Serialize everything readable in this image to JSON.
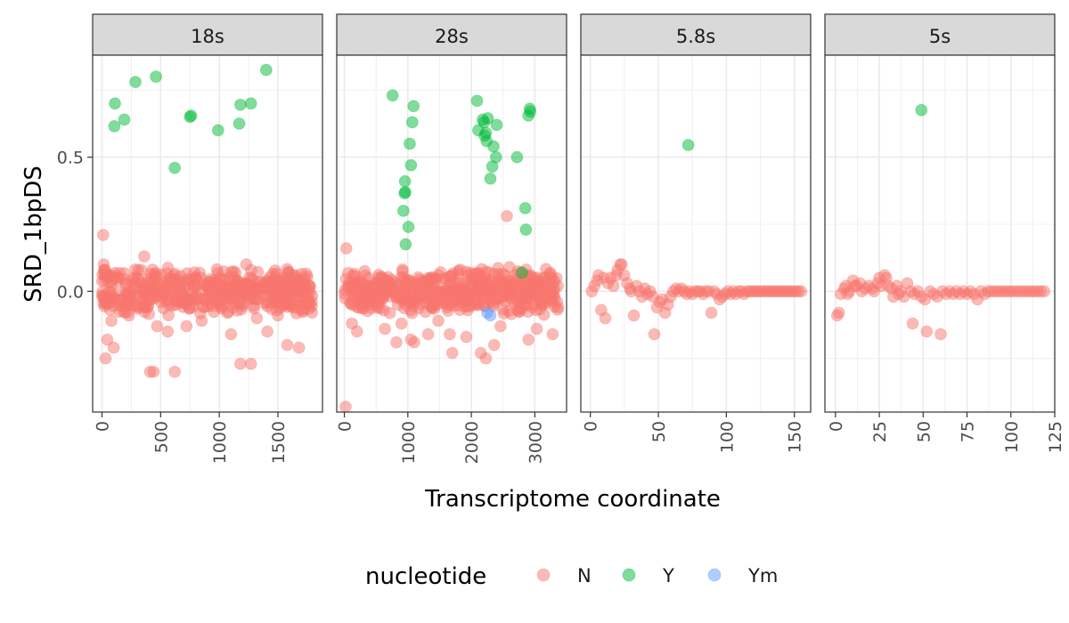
{
  "chart_data": {
    "type": "scatter",
    "facet_by": "rRNA",
    "ylabel": "SRD_1bpDS",
    "xlabel": "Transcriptome coordinate",
    "y_ticks": [
      0.0,
      0.5
    ],
    "y_tick_labels": [
      "0.0",
      "0.5"
    ],
    "ylim": [
      -0.45,
      0.88
    ],
    "grid": true,
    "theme": "bw",
    "legend": {
      "title": "nucleotide",
      "position": "bottom",
      "entries": [
        {
          "label": "N",
          "color": "#F8766D"
        },
        {
          "label": "Y",
          "color": "#00BA38"
        },
        {
          "label": "Ym",
          "color": "#619CFF"
        }
      ]
    },
    "panels": [
      {
        "strip": "18s",
        "xlim": [
          -80,
          1880
        ],
        "x_ticks": [
          0,
          500,
          1000,
          1500
        ],
        "x_tick_labels": [
          "0",
          "500",
          "1000",
          "1500"
        ],
        "n_extent": [
          1,
          1800
        ],
        "series": {
          "Y": [
            [
              105,
              0.615
            ],
            [
              110,
              0.7
            ],
            [
              190,
              0.64
            ],
            [
              285,
              0.78
            ],
            [
              460,
              0.8
            ],
            [
              620,
              0.46
            ],
            [
              750,
              0.65
            ],
            [
              760,
              0.655
            ],
            [
              990,
              0.6
            ],
            [
              1170,
              0.625
            ],
            [
              1180,
              0.695
            ],
            [
              1270,
              0.7
            ],
            [
              1400,
              0.825
            ]
          ],
          "N": [
            [
              10,
              0.21
            ],
            [
              15,
              0.1
            ],
            [
              20,
              0.08
            ],
            [
              25,
              0.06
            ],
            [
              30,
              -0.25
            ],
            [
              45,
              -0.18
            ],
            [
              80,
              -0.11
            ],
            [
              100,
              -0.21
            ],
            [
              360,
              0.13
            ],
            [
              410,
              -0.3
            ],
            [
              440,
              -0.3
            ],
            [
              470,
              -0.13
            ],
            [
              620,
              -0.3
            ],
            [
              720,
              -0.13
            ],
            [
              1100,
              -0.16
            ],
            [
              1180,
              -0.27
            ],
            [
              1230,
              0.1
            ],
            [
              1270,
              -0.27
            ],
            [
              1410,
              -0.15
            ],
            [
              1580,
              -0.2
            ],
            [
              1680,
              -0.21
            ],
            [
              230,
              -0.09
            ],
            [
              560,
              -0.15
            ],
            [
              850,
              -0.11
            ],
            [
              1320,
              -0.1
            ],
            [
              1500,
              -0.09
            ]
          ],
          "Ym": []
        }
      },
      {
        "strip": "28s",
        "xlim": [
          -120,
          3500
        ],
        "x_ticks": [
          0,
          1000,
          2000,
          3000
        ],
        "x_tick_labels": [
          "0",
          "1000",
          "2000",
          "3000"
        ],
        "n_extent": [
          1,
          3380
        ],
        "series": {
          "Y": [
            [
              760,
              0.73
            ],
            [
              930,
              0.3
            ],
            [
              950,
              0.365
            ],
            [
              955,
              0.41
            ],
            [
              960,
              0.37
            ],
            [
              965,
              0.175
            ],
            [
              1010,
              0.24
            ],
            [
              1030,
              0.55
            ],
            [
              1050,
              0.47
            ],
            [
              1070,
              0.63
            ],
            [
              1090,
              0.69
            ],
            [
              2090,
              0.71
            ],
            [
              2110,
              0.6
            ],
            [
              2180,
              0.64
            ],
            [
              2200,
              0.63
            ],
            [
              2210,
              0.58
            ],
            [
              2230,
              0.59
            ],
            [
              2240,
              0.56
            ],
            [
              2260,
              0.645
            ],
            [
              2300,
              0.42
            ],
            [
              2330,
              0.465
            ],
            [
              2350,
              0.54
            ],
            [
              2390,
              0.5
            ],
            [
              2400,
              0.62
            ],
            [
              2720,
              0.5
            ],
            [
              2800,
              0.07
            ],
            [
              2850,
              0.31
            ],
            [
              2860,
              0.23
            ],
            [
              2900,
              0.655
            ],
            [
              2920,
              0.68
            ],
            [
              2930,
              0.67
            ]
          ],
          "N": [
            [
              30,
              0.16
            ],
            [
              20,
              -0.43
            ],
            [
              120,
              -0.12
            ],
            [
              200,
              -0.15
            ],
            [
              640,
              -0.14
            ],
            [
              820,
              -0.19
            ],
            [
              900,
              -0.12
            ],
            [
              1050,
              -0.18
            ],
            [
              1100,
              -0.19
            ],
            [
              1320,
              -0.16
            ],
            [
              1660,
              -0.16
            ],
            [
              1700,
              -0.23
            ],
            [
              1920,
              -0.17
            ],
            [
              2150,
              -0.23
            ],
            [
              2230,
              -0.25
            ],
            [
              2360,
              -0.2
            ],
            [
              2560,
              0.28
            ],
            [
              2600,
              0.09
            ],
            [
              2690,
              0.06
            ],
            [
              2780,
              0.07
            ],
            [
              2900,
              -0.18
            ],
            [
              3030,
              -0.14
            ],
            [
              3280,
              -0.16
            ],
            [
              2460,
              -0.13
            ],
            [
              1480,
              -0.11
            ]
          ],
          "Ym": [
            [
              2250,
              -0.08
            ],
            [
              2300,
              -0.09
            ]
          ]
        }
      },
      {
        "strip": "5.8s",
        "xlim": [
          -7,
          162
        ],
        "x_ticks": [
          0,
          50,
          100,
          150
        ],
        "x_tick_labels": [
          "0",
          "50",
          "100",
          "150"
        ],
        "series": {
          "Y": [
            [
              72,
              0.545
            ]
          ],
          "N": [
            [
              1,
              0.0
            ],
            [
              3,
              0.02
            ],
            [
              5,
              0.04
            ],
            [
              6,
              0.06
            ],
            [
              8,
              -0.07
            ],
            [
              10,
              0.05
            ],
            [
              11,
              -0.1
            ],
            [
              13,
              0.03
            ],
            [
              15,
              0.05
            ],
            [
              17,
              0.02
            ],
            [
              19,
              0.06
            ],
            [
              20,
              0.08
            ],
            [
              22,
              0.1
            ],
            [
              23,
              0.1
            ],
            [
              25,
              0.06
            ],
            [
              27,
              0.03
            ],
            [
              29,
              0.01
            ],
            [
              30,
              0.0
            ],
            [
              32,
              -0.09
            ],
            [
              34,
              0.02
            ],
            [
              36,
              0.0
            ],
            [
              38,
              -0.02
            ],
            [
              40,
              0.01
            ],
            [
              42,
              -0.01
            ],
            [
              44,
              0.0
            ],
            [
              46,
              -0.02
            ],
            [
              47,
              -0.16
            ],
            [
              49,
              -0.06
            ],
            [
              51,
              -0.04
            ],
            [
              53,
              -0.03
            ],
            [
              55,
              -0.08
            ],
            [
              57,
              -0.05
            ],
            [
              59,
              -0.02
            ],
            [
              61,
              0.0
            ],
            [
              63,
              0.01
            ],
            [
              65,
              0.0
            ],
            [
              67,
              0.01
            ],
            [
              69,
              0.0
            ],
            [
              71,
              -0.01
            ],
            [
              73,
              0.0
            ],
            [
              75,
              -0.01
            ],
            [
              77,
              0.0
            ],
            [
              79,
              0.0
            ],
            [
              81,
              0.0
            ],
            [
              83,
              -0.01
            ],
            [
              85,
              0.0
            ],
            [
              87,
              0.0
            ],
            [
              89,
              -0.08
            ],
            [
              91,
              0.0
            ],
            [
              93,
              -0.01
            ],
            [
              95,
              -0.03
            ],
            [
              97,
              -0.02
            ],
            [
              99,
              -0.01
            ],
            [
              101,
              0.0
            ],
            [
              103,
              -0.01
            ],
            [
              105,
              0.0
            ],
            [
              107,
              -0.01
            ],
            [
              109,
              0.0
            ],
            [
              111,
              0.0
            ],
            [
              113,
              -0.01
            ],
            [
              115,
              0.0
            ],
            [
              117,
              0.0
            ],
            [
              119,
              0.0
            ],
            [
              121,
              0.0
            ],
            [
              123,
              0.0
            ],
            [
              125,
              0.0
            ],
            [
              127,
              0.0
            ],
            [
              129,
              0.0
            ],
            [
              131,
              0.0
            ],
            [
              133,
              0.0
            ],
            [
              135,
              0.0
            ],
            [
              137,
              0.0
            ],
            [
              139,
              0.0
            ],
            [
              141,
              0.0
            ],
            [
              143,
              0.0
            ],
            [
              145,
              0.0
            ],
            [
              147,
              0.0
            ],
            [
              149,
              0.0
            ],
            [
              151,
              0.0
            ],
            [
              153,
              0.0
            ],
            [
              155,
              0.0
            ]
          ],
          "Ym": []
        }
      },
      {
        "strip": "5s",
        "xlim": [
          -6,
          125
        ],
        "x_ticks": [
          0,
          25,
          50,
          75,
          100,
          125
        ],
        "x_tick_labels": [
          "0",
          "25",
          "50",
          "75",
          "100",
          "125"
        ],
        "series": {
          "Y": [
            [
              49,
              0.675
            ]
          ],
          "N": [
            [
              1,
              -0.09
            ],
            [
              2,
              -0.08
            ],
            [
              3,
              -0.01
            ],
            [
              5,
              0.01
            ],
            [
              6,
              0.02
            ],
            [
              7,
              -0.01
            ],
            [
              8,
              0.0
            ],
            [
              10,
              0.04
            ],
            [
              11,
              0.02
            ],
            [
              12,
              0.02
            ],
            [
              14,
              0.03
            ],
            [
              15,
              0.0
            ],
            [
              17,
              0.01
            ],
            [
              19,
              0.02
            ],
            [
              21,
              0.01
            ],
            [
              22,
              0.0
            ],
            [
              24,
              0.03
            ],
            [
              25,
              0.05
            ],
            [
              26,
              0.02
            ],
            [
              28,
              0.06
            ],
            [
              29,
              0.05
            ],
            [
              30,
              0.02
            ],
            [
              32,
              0.01
            ],
            [
              33,
              -0.02
            ],
            [
              35,
              0.02
            ],
            [
              36,
              -0.01
            ],
            [
              37,
              0.0
            ],
            [
              39,
              -0.02
            ],
            [
              41,
              0.03
            ],
            [
              43,
              0.0
            ],
            [
              44,
              -0.12
            ],
            [
              45,
              -0.01
            ],
            [
              47,
              0.0
            ],
            [
              49,
              -0.02
            ],
            [
              51,
              -0.03
            ],
            [
              52,
              -0.15
            ],
            [
              54,
              0.0
            ],
            [
              56,
              -0.01
            ],
            [
              58,
              -0.02
            ],
            [
              60,
              -0.16
            ],
            [
              61,
              0.0
            ],
            [
              63,
              -0.01
            ],
            [
              65,
              0.0
            ],
            [
              67,
              -0.01
            ],
            [
              69,
              0.0
            ],
            [
              71,
              -0.01
            ],
            [
              73,
              0.0
            ],
            [
              75,
              -0.01
            ],
            [
              77,
              0.0
            ],
            [
              79,
              -0.01
            ],
            [
              81,
              -0.03
            ],
            [
              83,
              0.0
            ],
            [
              85,
              -0.01
            ],
            [
              87,
              0.0
            ],
            [
              89,
              0.0
            ],
            [
              91,
              0.0
            ],
            [
              93,
              0.0
            ],
            [
              95,
              0.0
            ],
            [
              97,
              0.0
            ],
            [
              99,
              0.0
            ],
            [
              101,
              0.0
            ],
            [
              103,
              0.0
            ],
            [
              105,
              0.0
            ],
            [
              107,
              0.0
            ],
            [
              109,
              0.0
            ],
            [
              111,
              0.0
            ],
            [
              113,
              0.0
            ],
            [
              115,
              0.0
            ],
            [
              117,
              0.0
            ],
            [
              119,
              0.0
            ]
          ],
          "Ym": []
        }
      }
    ]
  }
}
